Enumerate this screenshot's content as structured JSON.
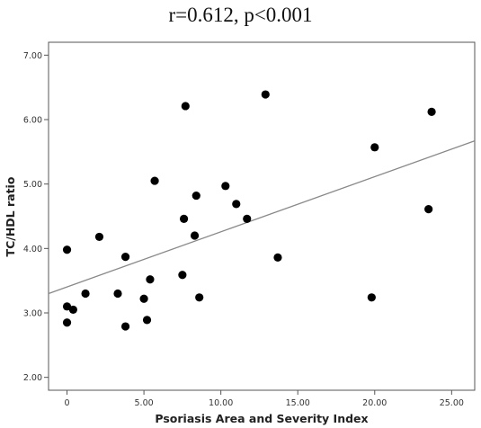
{
  "chart_data": {
    "type": "scatter",
    "title": "r=0.612, p<0.001",
    "xlabel": "Psoriasis Area and Severity Index",
    "ylabel": "TC/HDL ratio",
    "xlim": [
      -1.2,
      26.5
    ],
    "ylim": [
      1.8,
      7.2
    ],
    "x_ticks": [
      0,
      5,
      10,
      15,
      20,
      25
    ],
    "x_tick_labels": [
      "0",
      "5.00",
      "10.00",
      "15.00",
      "20.00",
      "25.00"
    ],
    "y_ticks": [
      2,
      3,
      4,
      5,
      6,
      7
    ],
    "y_tick_labels": [
      "2.00",
      "3.00",
      "4.00",
      "5.00",
      "6.00",
      "7.00"
    ],
    "grid": false,
    "points": [
      {
        "x": 0.0,
        "y": 3.98
      },
      {
        "x": 0.0,
        "y": 3.1
      },
      {
        "x": 0.0,
        "y": 2.85
      },
      {
        "x": 0.4,
        "y": 3.05
      },
      {
        "x": 1.2,
        "y": 3.3
      },
      {
        "x": 2.1,
        "y": 4.18
      },
      {
        "x": 3.3,
        "y": 3.3
      },
      {
        "x": 3.8,
        "y": 3.87
      },
      {
        "x": 3.8,
        "y": 2.79
      },
      {
        "x": 5.0,
        "y": 3.22
      },
      {
        "x": 5.2,
        "y": 2.89
      },
      {
        "x": 5.4,
        "y": 3.52
      },
      {
        "x": 5.7,
        "y": 5.05
      },
      {
        "x": 7.5,
        "y": 3.59
      },
      {
        "x": 7.6,
        "y": 4.46
      },
      {
        "x": 7.7,
        "y": 6.21
      },
      {
        "x": 8.3,
        "y": 4.2
      },
      {
        "x": 8.4,
        "y": 4.82
      },
      {
        "x": 8.6,
        "y": 3.24
      },
      {
        "x": 10.3,
        "y": 4.97
      },
      {
        "x": 11.0,
        "y": 4.69
      },
      {
        "x": 11.7,
        "y": 4.46
      },
      {
        "x": 12.9,
        "y": 6.39
      },
      {
        "x": 13.7,
        "y": 3.86
      },
      {
        "x": 19.8,
        "y": 3.24
      },
      {
        "x": 20.0,
        "y": 5.57
      },
      {
        "x": 23.5,
        "y": 4.61
      },
      {
        "x": 23.7,
        "y": 6.12
      }
    ],
    "fit_line": {
      "x": [
        -1.2,
        26.5
      ],
      "y": [
        3.3,
        5.67
      ]
    }
  }
}
